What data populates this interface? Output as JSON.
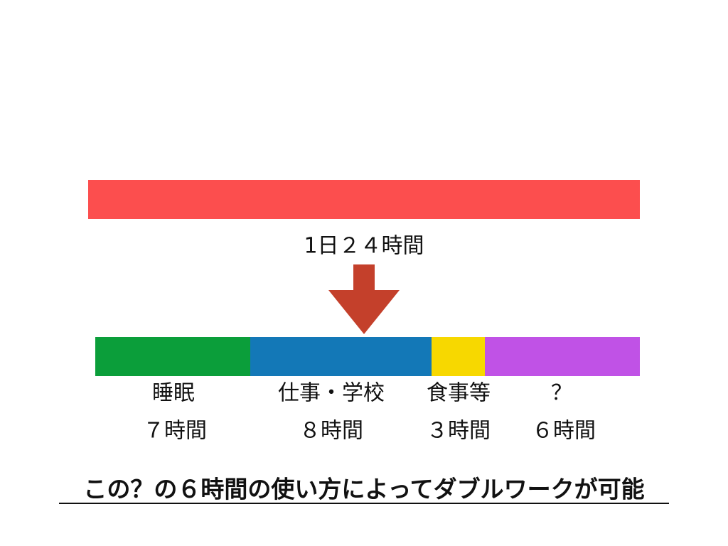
{
  "total_label": "1日２４時間",
  "segments": [
    {
      "label": "睡眠",
      "hours": "７時間"
    },
    {
      "label": "仕事・学校",
      "hours": "８時間"
    },
    {
      "label": "食事等",
      "hours": "３時間"
    },
    {
      "label": "？",
      "hours": "６時間"
    }
  ],
  "conclusion": "この？の６時間の使い方によってダブルワークが可能"
}
